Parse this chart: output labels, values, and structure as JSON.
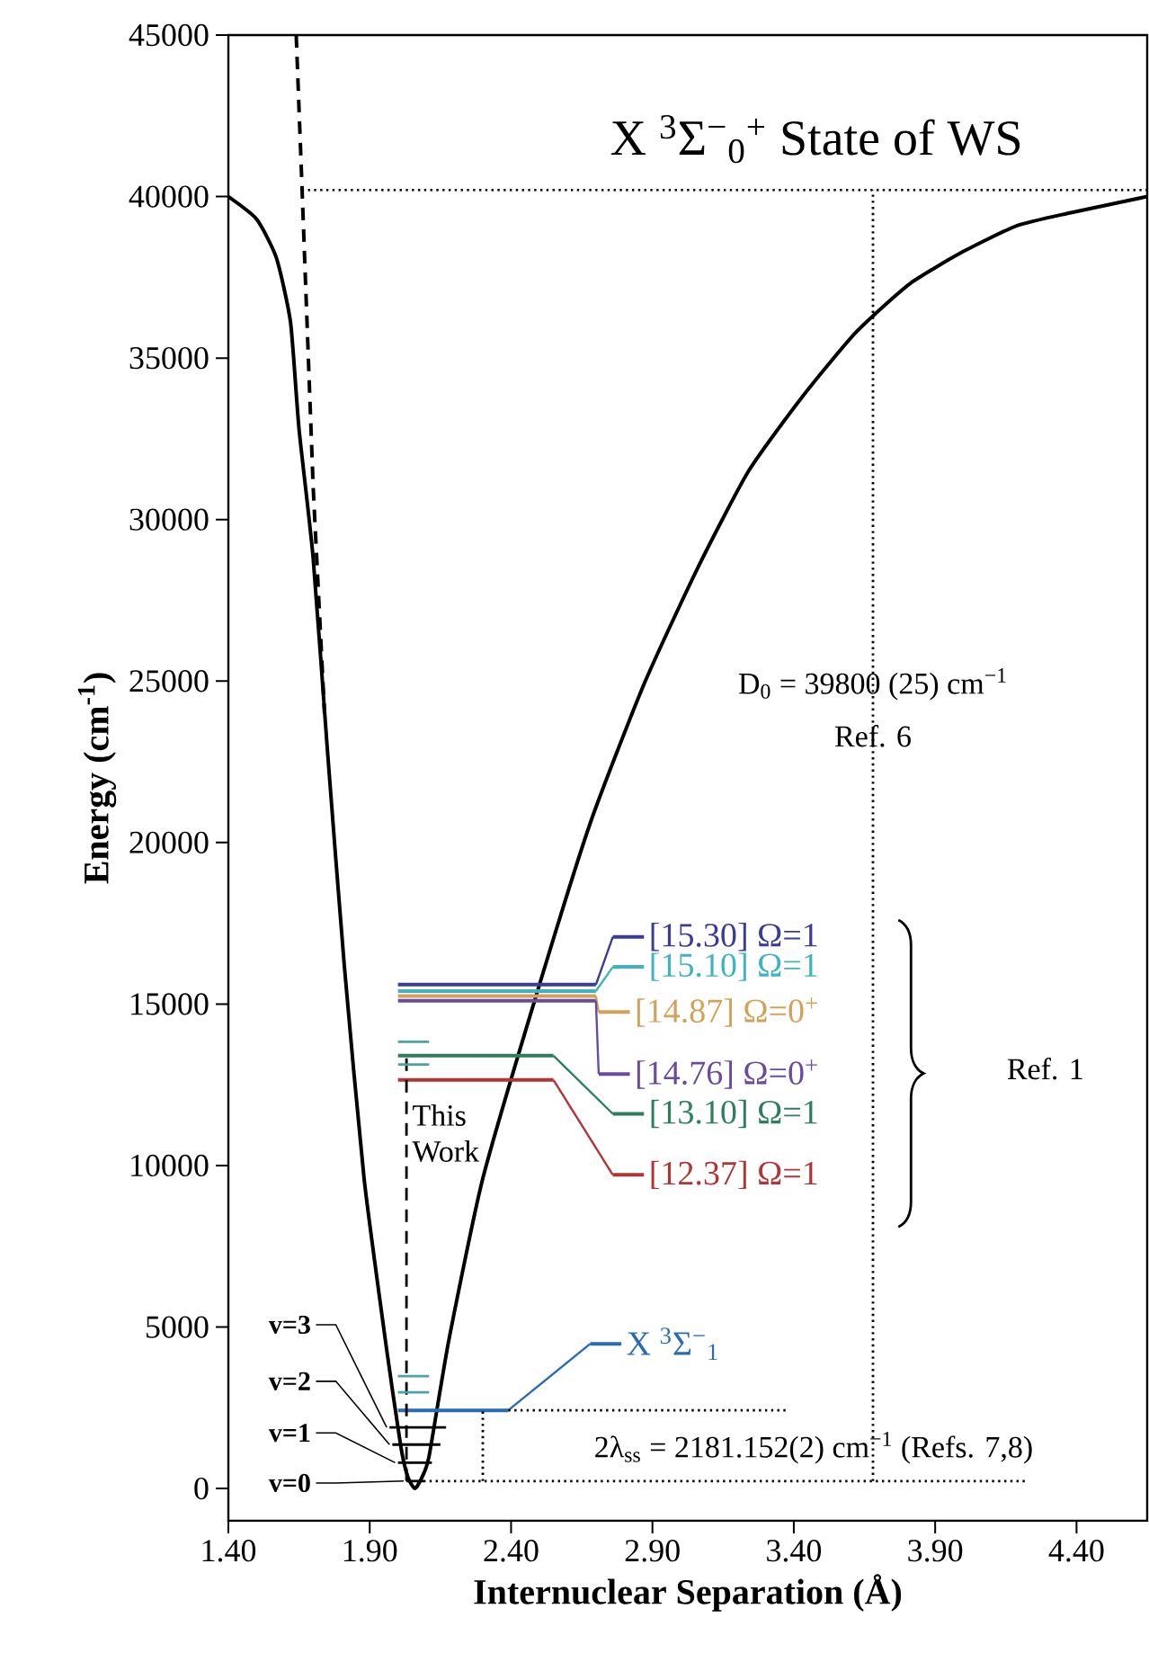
{
  "chart_data": {
    "type": "line",
    "title": "X $^{3}$Σ$^{−}$$_{0}$$^{+}$ State of WS",
    "xlabel": "Internuclear Separation (Å)",
    "ylabel": "Energy (cm$^{-1}$)",
    "xlim": [
      1.4,
      4.65
    ],
    "ylim": [
      -1000,
      45000
    ],
    "xticks": [
      {
        "value": 1.4,
        "label": "1.40"
      },
      {
        "value": 1.9,
        "label": "1.90"
      },
      {
        "value": 2.4,
        "label": "2.40"
      },
      {
        "value": 2.9,
        "label": "2.90"
      },
      {
        "value": 3.4,
        "label": "3.40"
      },
      {
        "value": 3.9,
        "label": "3.90"
      },
      {
        "value": 4.4,
        "label": "4.40"
      }
    ],
    "yticks": [
      0,
      5000,
      10000,
      15000,
      20000,
      25000,
      30000,
      35000,
      40000,
      45000
    ],
    "series": [
      {
        "color": "#000000",
        "x": [
          1.4,
          1.5,
          1.57,
          1.62,
          1.65,
          1.7,
          1.75,
          1.81,
          1.88,
          1.96,
          2.01,
          2.035,
          2.06,
          2.085,
          2.11,
          2.18,
          2.3,
          2.49,
          2.68,
          2.87,
          3.06,
          3.24,
          3.43,
          3.62,
          3.81,
          4.0,
          4.19,
          4.38,
          4.65
        ],
        "values": [
          40000,
          39300,
          38100,
          36100,
          32800,
          28800,
          22900,
          16200,
          9600,
          4300,
          1300,
          350,
          0,
          350,
          1000,
          4600,
          9600,
          15300,
          20600,
          24900,
          28500,
          31500,
          33800,
          35800,
          37300,
          38300,
          39100,
          39500,
          40000
        ]
      },
      {
        "color": "#000000",
        "line_style": "dashed",
        "x": [
          1.64,
          1.66,
          1.7,
          1.74
        ],
        "values": [
          45000,
          40400,
          31000,
          24000
        ]
      },
      {
        "name": "v=0",
        "color": "#000000",
        "x": [
          2.03,
          2.09
        ],
        "values": [
          230,
          230
        ]
      },
      {
        "color": "#000000",
        "line_style": "dotted",
        "x": [
          2.09,
          4.22
        ],
        "values": [
          230,
          230
        ]
      },
      {
        "name": "v=1",
        "color": "#000000",
        "x": [
          2.0,
          2.12
        ],
        "values": [
          800,
          800
        ]
      },
      {
        "name": "v=2",
        "color": "#000000",
        "x": [
          1.98,
          2.15
        ],
        "values": [
          1360,
          1360
        ]
      },
      {
        "name": "v=3",
        "color": "#000000",
        "x": [
          1.97,
          2.17
        ],
        "values": [
          1890,
          1890
        ]
      },
      {
        "name": "X $^{3}$Σ$^{−}$$_{1}$",
        "color": "#2b6cb0",
        "x": [
          2.0,
          2.39
        ],
        "values": [
          2420,
          2420
        ]
      },
      {
        "color": "#000000",
        "line_style": "dotted",
        "x": [
          2.39,
          3.38
        ],
        "values": [
          2420,
          2420
        ]
      },
      {
        "color": "#000000",
        "line_style": "dotted",
        "x": [
          2.3,
          2.3
        ],
        "values": [
          230,
          2420
        ]
      },
      {
        "color": "#000000",
        "line_style": "dotted",
        "x": [
          3.68,
          3.68
        ],
        "values": [
          230,
          40200
        ]
      },
      {
        "color": "#000000",
        "line_style": "dotted",
        "x": [
          1.66,
          4.65
        ],
        "values": [
          40200,
          40200
        ]
      },
      {
        "name": "[15.30] Ω=1",
        "color": "#3b3b98",
        "x": [
          2.0,
          2.7
        ],
        "values": [
          15600,
          15600
        ]
      },
      {
        "name": "[15.10] Ω=1",
        "color": "#3fb3c2",
        "x": [
          2.0,
          2.7
        ],
        "values": [
          15400,
          15400
        ]
      },
      {
        "name": "[14.87] Ω=0$^{+}$",
        "color": "#d4a15a",
        "x": [
          2.0,
          2.7
        ],
        "values": [
          15250,
          15250
        ]
      },
      {
        "name": "[14.76] Ω=0$^{+}$",
        "color": "#6a4c9c",
        "x": [
          2.0,
          2.7
        ],
        "values": [
          15100,
          15100
        ]
      },
      {
        "name": "[13.10] Ω=1",
        "color": "#2e7d5b",
        "x": [
          2.0,
          2.55
        ],
        "values": [
          13400,
          13400
        ]
      },
      {
        "name": "[12.37] Ω=1",
        "color": "#b03535",
        "x": [
          2.0,
          2.55
        ],
        "values": [
          12650,
          12650
        ]
      },
      {
        "color": "#000000",
        "line_style": "dashed",
        "x": [
          2.03,
          2.03
        ],
        "values": [
          230,
          13400
        ]
      },
      {
        "color": "#4aa3a8",
        "x": [
          2.0,
          2.11
        ],
        "values": [
          13830,
          13830
        ]
      },
      {
        "color": "#4aa3a8",
        "x": [
          2.0,
          2.11
        ],
        "values": [
          13130,
          13130
        ]
      },
      {
        "color": "#4aa3a8",
        "x": [
          2.0,
          2.11
        ],
        "values": [
          3480,
          3480
        ]
      },
      {
        "color": "#4aa3a8",
        "x": [
          2.0,
          2.11
        ],
        "values": [
          2980,
          2980
        ]
      }
    ],
    "annotations": [
      {
        "text": "D$_{0}$ = 39800 (25) cm$^{−1}$",
        "x": 3.68,
        "y": 24900
      },
      {
        "text": "Ref. 6",
        "x": 3.68,
        "y": 23300
      },
      "This Work",
      "Ref. 1",
      "2λ$_{ss}$ = 2181.152(2) cm$^{−1}$ (Refs. 7,8)"
    ],
    "legend": "bottom left"
  }
}
